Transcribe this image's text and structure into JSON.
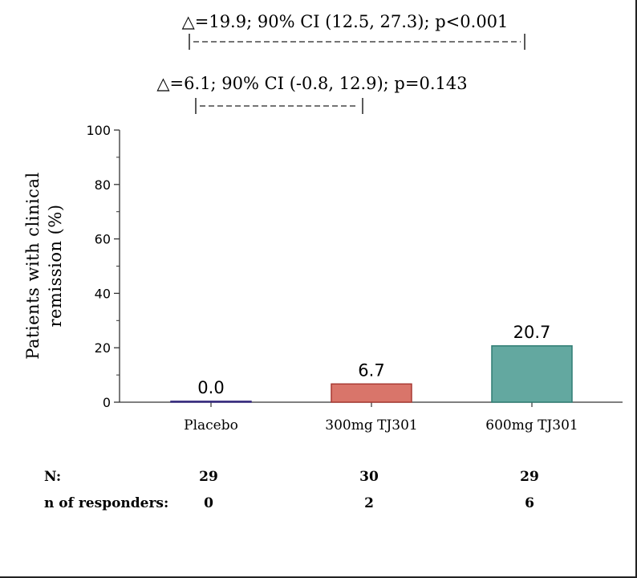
{
  "chart_data": {
    "type": "bar",
    "categories": [
      "Placebo",
      "300mg TJ301",
      "600mg TJ301"
    ],
    "values": [
      0.0,
      6.7,
      20.7
    ],
    "value_labels": [
      "0.0",
      "6.7",
      "20.7"
    ],
    "colors": [
      "#5b4fa0",
      "#d9756a",
      "#63a8a0"
    ],
    "edge_colors": [
      "#3a2f80",
      "#a83a33",
      "#2f7c73"
    ],
    "ylabel_lines": [
      "Patients with clinical",
      "remission (%)"
    ],
    "ylim": [
      0,
      100
    ],
    "yticks": [
      0,
      20,
      40,
      60,
      80,
      100
    ],
    "grid": false,
    "annotations": [
      {
        "text": "△=19.9; 90% CI (12.5, 27.3); p<0.001",
        "from": "Placebo",
        "to": "600mg TJ301"
      },
      {
        "text": "△=6.1; 90% CI (-0.8, 12.9); p=0.143",
        "from": "Placebo",
        "to": "300mg TJ301"
      }
    ]
  },
  "table": {
    "rows": [
      {
        "label": "N:",
        "values": [
          "29",
          "30",
          "29"
        ]
      },
      {
        "label": "n of responders:",
        "values": [
          "0",
          "2",
          "6"
        ]
      }
    ]
  }
}
